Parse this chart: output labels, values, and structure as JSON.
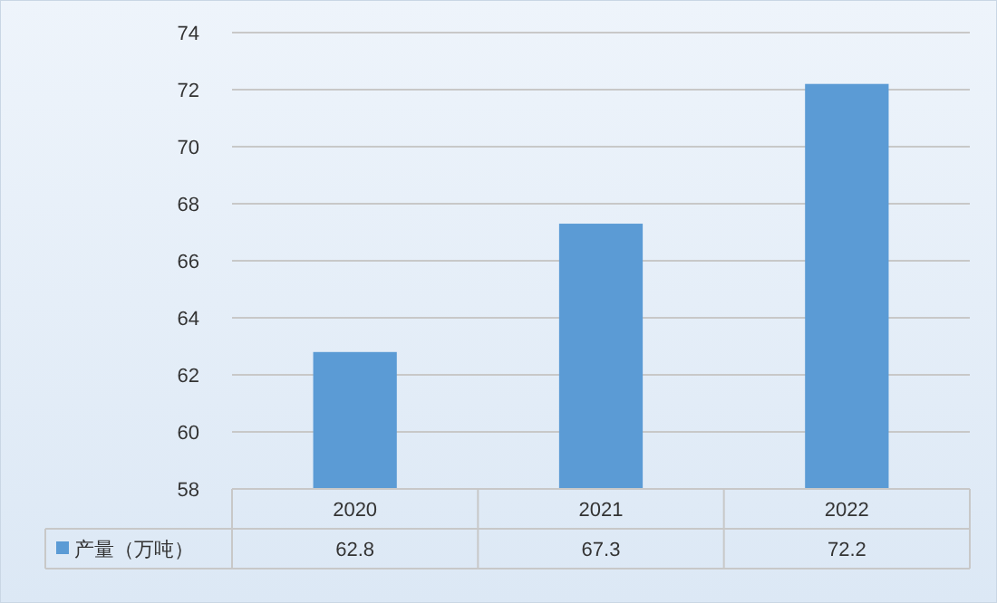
{
  "chart_data": {
    "type": "bar",
    "categories": [
      "2020",
      "2021",
      "2022"
    ],
    "series": [
      {
        "name": "产量（万吨）",
        "color": "#5b9bd5",
        "values": [
          62.8,
          67.3,
          72.2
        ]
      }
    ],
    "ylim": [
      58,
      74
    ],
    "yticks": [
      58,
      60,
      62,
      64,
      66,
      68,
      70,
      72,
      74
    ],
    "grid": "y",
    "legend": "bottom",
    "data_labels": true
  }
}
